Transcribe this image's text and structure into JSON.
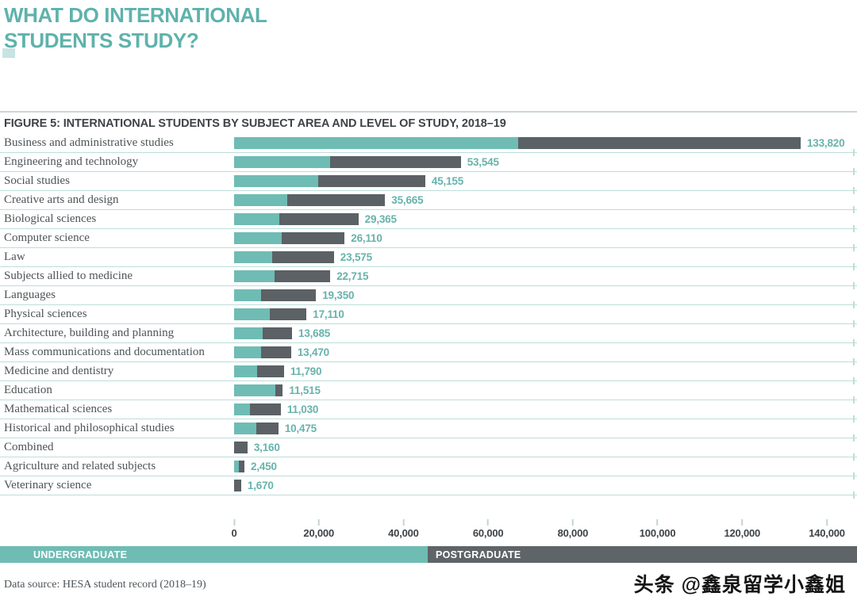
{
  "page": {
    "title": "WHAT DO INTERNATIONAL STUDENTS STUDY?",
    "figure_title": "FIGURE 5: INTERNATIONAL STUDENTS BY SUBJECT AREA AND LEVEL OF STUDY, 2018–19"
  },
  "chart_data": {
    "type": "bar",
    "orientation": "horizontal",
    "stacked": true,
    "title": "FIGURE 5: INTERNATIONAL STUDENTS BY SUBJECT AREA AND LEVEL OF STUDY, 2018–19",
    "xlabel": "",
    "ylabel": "",
    "xlim": [
      0,
      140000
    ],
    "grid": false,
    "legend_position": "bottom",
    "x_ticks": [
      0,
      20000,
      40000,
      60000,
      80000,
      100000,
      120000,
      140000
    ],
    "x_tick_labels": [
      "0",
      "20,000",
      "40,000",
      "60,000",
      "80,000",
      "100,000",
      "120,000",
      "140,000"
    ],
    "categories": [
      "Business and administrative studies",
      "Engineering and technology",
      "Social studies",
      "Creative arts and design",
      "Biological sciences",
      "Computer science",
      "Law",
      "Subjects allied to medicine",
      "Languages",
      "Physical sciences",
      "Architecture, building and planning",
      "Mass communications and documentation",
      "Medicine and dentistry",
      "Education",
      "Mathematical sciences",
      "Historical and philosophical studies",
      "Combined",
      "Agriculture and related subjects",
      "Veterinary science"
    ],
    "series": [
      {
        "name": "UNDERGRADUATE",
        "color": "#6fbcb4",
        "values": [
          67100,
          22700,
          19900,
          12600,
          10600,
          11200,
          9000,
          9500,
          6400,
          8400,
          6800,
          6400,
          5400,
          9700,
          3750,
          5200,
          0,
          1150,
          0
        ]
      },
      {
        "name": "POSTGRADUATE",
        "color": "#5b6165",
        "values": [
          66720,
          30845,
          25255,
          23065,
          18765,
          14910,
          14575,
          13215,
          12950,
          8710,
          6885,
          7070,
          6390,
          1815,
          7280,
          5275,
          3160,
          1300,
          1670
        ]
      }
    ],
    "totals": [
      133820,
      53545,
      45155,
      35665,
      29365,
      26110,
      23575,
      22715,
      19350,
      17110,
      13685,
      13470,
      11790,
      11515,
      11030,
      10475,
      3160,
      2450,
      1670
    ],
    "total_labels": [
      "133,820",
      "53,545",
      "45,155",
      "35,665",
      "29,365",
      "26,110",
      "23,575",
      "22,715",
      "19,350",
      "17,110",
      "13,685",
      "13,470",
      "11,790",
      "11,515",
      "11,030",
      "10,475",
      "3,160",
      "2,450",
      "1,670"
    ]
  },
  "legend": {
    "undergraduate": "UNDERGRADUATE",
    "postgraduate": "POSTGRADUATE"
  },
  "footer": {
    "source": "Data source: HESA student record (2018–19)",
    "watermark": "头条 @鑫泉留学小鑫姐"
  },
  "colors": {
    "teal_bar": "#6fbcb4",
    "dark_bar": "#5b6165",
    "title_teal": "#5fb2ac",
    "value_teal": "#67b3ac",
    "separator_teal": "#bcdeda",
    "heading_dark": "#3d4347",
    "legend_gray": "#5e6468"
  }
}
